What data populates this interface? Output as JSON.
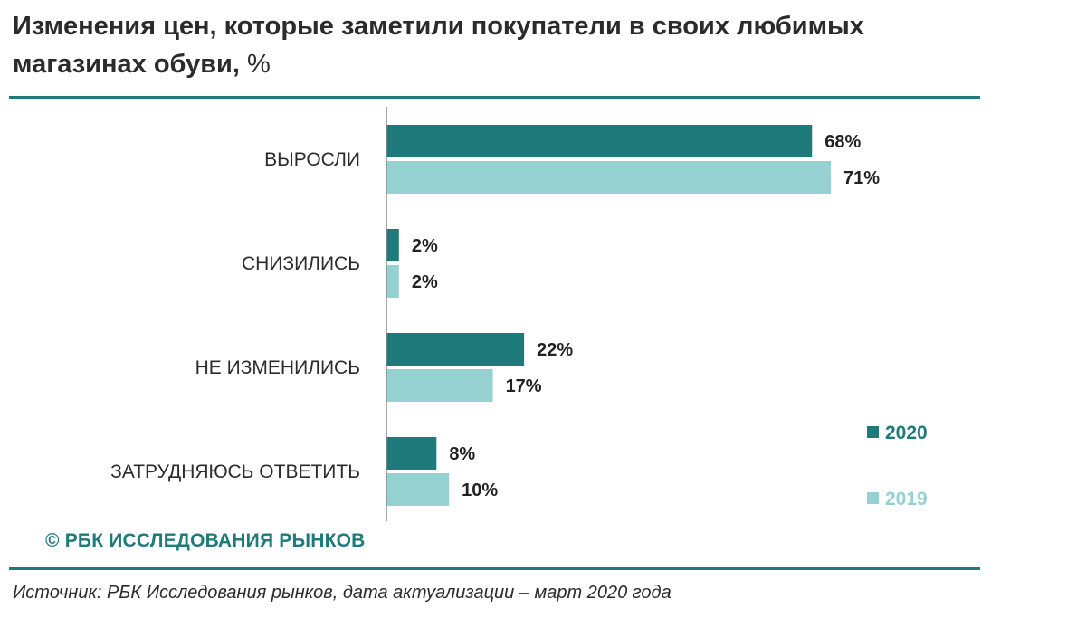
{
  "title": "Изменения цен, которые заметили покупатели в своих любимых магазинах обуви,",
  "title_unit": "%",
  "copyright": "© РБК ИССЛЕДОВАНИЯ РЫНКОВ",
  "source": "Источник: РБК Исследования рынков, дата актуализации – март 2020 года",
  "colors": {
    "series_2020": "#1f7b7b",
    "series_2019": "#96d1d1",
    "accent": "#1f7a7a"
  },
  "chart_data": {
    "type": "bar",
    "orientation": "horizontal",
    "categories": [
      "ВЫРОСЛИ",
      "СНИЗИЛИСЬ",
      "НЕ ИЗМЕНИЛИСЬ",
      "ЗАТРУДНЯЮСЬ ОТВЕТИТЬ"
    ],
    "series": [
      {
        "name": "2020",
        "values": [
          68,
          2,
          22,
          8
        ],
        "labels": [
          "68%",
          "2%",
          "22%",
          "8%"
        ]
      },
      {
        "name": "2019",
        "values": [
          71,
          2,
          17,
          10
        ],
        "labels": [
          "71%",
          "2%",
          "17%",
          "10%"
        ]
      }
    ],
    "xlim": [
      0,
      71
    ],
    "legend_position": "bottom-right",
    "grid": false
  }
}
